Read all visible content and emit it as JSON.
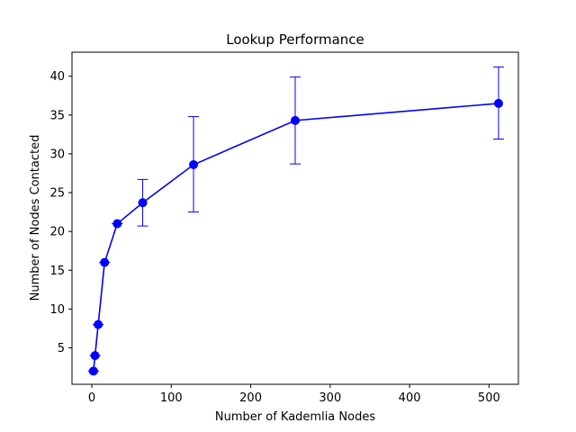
{
  "chart_data": {
    "type": "line",
    "title": "Lookup Performance",
    "xlabel": "Number of Kademlia Nodes",
    "ylabel": "Number of Nodes Contacted",
    "xlim": [
      -25,
      537
    ],
    "ylim": [
      0.3,
      43.1
    ],
    "xticks": [
      0,
      100,
      200,
      300,
      400,
      500
    ],
    "yticks": [
      5,
      10,
      15,
      20,
      25,
      30,
      35,
      40
    ],
    "grid": false,
    "series": [
      {
        "color": "#0000ff",
        "marker": "circle",
        "x": [
          2,
          4,
          8,
          16,
          32,
          64,
          128,
          256,
          512
        ],
        "y": [
          2,
          4,
          8,
          16,
          21,
          23.7,
          28.6,
          34.3,
          36.5
        ],
        "err_low": [
          0,
          0,
          0,
          0,
          0,
          3,
          6.1,
          5.6,
          4.6
        ],
        "err_high": [
          0,
          0,
          0,
          0,
          0,
          3,
          6.2,
          5.6,
          4.7
        ]
      }
    ]
  }
}
